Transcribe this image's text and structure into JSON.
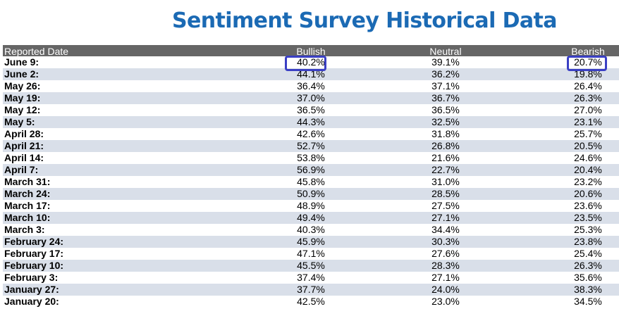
{
  "title": "Sentiment Survey Historical Data",
  "headers": {
    "date": "Reported Date",
    "bullish": "Bullish",
    "neutral": "Neutral",
    "bearish": "Bearish"
  },
  "rows": [
    {
      "date": "June 9:",
      "bullish": "40.2%",
      "neutral": "39.1%",
      "bearish": "20.7%"
    },
    {
      "date": "June 2:",
      "bullish": "44.1%",
      "neutral": "36.2%",
      "bearish": "19.8%"
    },
    {
      "date": "May 26:",
      "bullish": "36.4%",
      "neutral": "37.1%",
      "bearish": "26.4%"
    },
    {
      "date": "May 19:",
      "bullish": "37.0%",
      "neutral": "36.7%",
      "bearish": "26.3%"
    },
    {
      "date": "May 12:",
      "bullish": "36.5%",
      "neutral": "36.5%",
      "bearish": "27.0%"
    },
    {
      "date": "May 5:",
      "bullish": "44.3%",
      "neutral": "32.5%",
      "bearish": "23.1%"
    },
    {
      "date": "April 28:",
      "bullish": "42.6%",
      "neutral": "31.8%",
      "bearish": "25.7%"
    },
    {
      "date": "April 21:",
      "bullish": "52.7%",
      "neutral": "26.8%",
      "bearish": "20.5%"
    },
    {
      "date": "April 14:",
      "bullish": "53.8%",
      "neutral": "21.6%",
      "bearish": "24.6%"
    },
    {
      "date": "April 7:",
      "bullish": "56.9%",
      "neutral": "22.7%",
      "bearish": "20.4%"
    },
    {
      "date": "March 31:",
      "bullish": "45.8%",
      "neutral": "31.0%",
      "bearish": "23.2%"
    },
    {
      "date": "March 24:",
      "bullish": "50.9%",
      "neutral": "28.5%",
      "bearish": "20.6%"
    },
    {
      "date": "March 17:",
      "bullish": "48.9%",
      "neutral": "27.5%",
      "bearish": "23.6%"
    },
    {
      "date": "March 10:",
      "bullish": "49.4%",
      "neutral": "27.1%",
      "bearish": "23.5%"
    },
    {
      "date": "March 3:",
      "bullish": "40.3%",
      "neutral": "34.4%",
      "bearish": "25.3%"
    },
    {
      "date": "February 24:",
      "bullish": "45.9%",
      "neutral": "30.3%",
      "bearish": "23.8%"
    },
    {
      "date": "February 17:",
      "bullish": "47.1%",
      "neutral": "27.6%",
      "bearish": "25.4%"
    },
    {
      "date": "February 10:",
      "bullish": "45.5%",
      "neutral": "28.3%",
      "bearish": "26.3%"
    },
    {
      "date": "February 3:",
      "bullish": "37.4%",
      "neutral": "27.1%",
      "bearish": "35.6%"
    },
    {
      "date": "January 27:",
      "bullish": "37.7%",
      "neutral": "24.0%",
      "bearish": "38.3%"
    },
    {
      "date": "January 20:",
      "bullish": "42.5%",
      "neutral": "23.0%",
      "bearish": "34.5%"
    }
  ],
  "colors": {
    "title": "#1b6ab4",
    "header_bg": "#666666",
    "stripe": "#d9dfe9",
    "highlight_border": "#3a3fc4"
  }
}
